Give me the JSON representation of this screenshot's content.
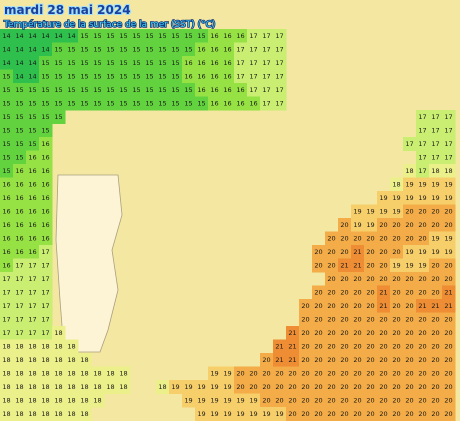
{
  "header": {
    "title": "mardi 28 mai 2024",
    "subtitle": "Température de la surface de la mer (SST) (°C)"
  },
  "value_colors": {
    "14": "#2fbf4d",
    "15": "#62d23f",
    "16": "#96e244",
    "17": "#c9ee72",
    "18": "#ecf08a",
    "19": "#f7cf6a",
    "20": "#f3ac47",
    "21": "#ee8d33"
  },
  "grid": [
    [
      14,
      14,
      14,
      14,
      14,
      14,
      15,
      15,
      15,
      15,
      15,
      15,
      15,
      15,
      15,
      15,
      16,
      16,
      16,
      17,
      17,
      17,
      null,
      null,
      null,
      null,
      null,
      null,
      null,
      null,
      null,
      null,
      null,
      null,
      null
    ],
    [
      14,
      14,
      14,
      14,
      15,
      15,
      15,
      15,
      15,
      15,
      15,
      15,
      15,
      15,
      15,
      16,
      16,
      16,
      17,
      17,
      17,
      17,
      null,
      null,
      null,
      null,
      null,
      null,
      null,
      null,
      null,
      null,
      null,
      null,
      null
    ],
    [
      14,
      14,
      14,
      15,
      15,
      15,
      15,
      15,
      15,
      15,
      15,
      15,
      15,
      15,
      16,
      16,
      16,
      16,
      17,
      17,
      17,
      17,
      null,
      null,
      null,
      null,
      null,
      null,
      null,
      null,
      null,
      null,
      null,
      null,
      null
    ],
    [
      15,
      14,
      14,
      15,
      15,
      15,
      15,
      15,
      15,
      15,
      15,
      15,
      15,
      15,
      16,
      16,
      16,
      16,
      17,
      17,
      17,
      17,
      null,
      null,
      null,
      null,
      null,
      null,
      null,
      null,
      null,
      null,
      null,
      null,
      null
    ],
    [
      15,
      15,
      15,
      15,
      15,
      15,
      15,
      15,
      15,
      15,
      15,
      15,
      15,
      15,
      15,
      16,
      16,
      16,
      16,
      17,
      17,
      17,
      null,
      null,
      null,
      null,
      null,
      null,
      null,
      null,
      null,
      null,
      null,
      null,
      null
    ],
    [
      15,
      15,
      15,
      15,
      15,
      15,
      15,
      15,
      15,
      15,
      15,
      15,
      15,
      15,
      15,
      15,
      16,
      16,
      16,
      16,
      17,
      17,
      null,
      null,
      null,
      null,
      null,
      null,
      null,
      null,
      null,
      null,
      null,
      null,
      null
    ],
    [
      15,
      15,
      15,
      15,
      15,
      null,
      null,
      null,
      null,
      null,
      null,
      null,
      null,
      null,
      null,
      null,
      null,
      null,
      null,
      null,
      null,
      null,
      null,
      null,
      null,
      null,
      null,
      null,
      null,
      null,
      null,
      null,
      17,
      17,
      17
    ],
    [
      15,
      15,
      15,
      15,
      null,
      null,
      null,
      null,
      null,
      null,
      null,
      null,
      null,
      null,
      null,
      null,
      null,
      null,
      null,
      null,
      null,
      null,
      null,
      null,
      null,
      null,
      null,
      null,
      null,
      null,
      null,
      null,
      17,
      17,
      17
    ],
    [
      15,
      15,
      15,
      16,
      null,
      null,
      null,
      null,
      null,
      null,
      null,
      null,
      null,
      null,
      null,
      null,
      null,
      null,
      null,
      null,
      null,
      null,
      null,
      null,
      null,
      null,
      null,
      null,
      null,
      null,
      null,
      17,
      17,
      17,
      17
    ],
    [
      15,
      15,
      16,
      16,
      null,
      null,
      null,
      null,
      null,
      null,
      null,
      null,
      null,
      null,
      null,
      null,
      null,
      null,
      null,
      null,
      null,
      null,
      null,
      null,
      null,
      null,
      null,
      null,
      null,
      null,
      null,
      null,
      17,
      17,
      17
    ],
    [
      15,
      16,
      16,
      16,
      null,
      null,
      null,
      null,
      null,
      null,
      null,
      null,
      null,
      null,
      null,
      null,
      null,
      null,
      null,
      null,
      null,
      null,
      null,
      null,
      null,
      null,
      null,
      null,
      null,
      null,
      null,
      18,
      17,
      18,
      18
    ],
    [
      16,
      16,
      16,
      16,
      null,
      null,
      null,
      null,
      null,
      null,
      null,
      null,
      null,
      null,
      null,
      null,
      null,
      null,
      null,
      null,
      null,
      null,
      null,
      null,
      null,
      null,
      null,
      null,
      null,
      null,
      18,
      19,
      19,
      19,
      19
    ],
    [
      16,
      16,
      16,
      16,
      null,
      null,
      null,
      null,
      null,
      null,
      null,
      null,
      null,
      null,
      null,
      null,
      null,
      null,
      null,
      null,
      null,
      null,
      null,
      null,
      null,
      null,
      null,
      null,
      null,
      19,
      19,
      19,
      19,
      19,
      19
    ],
    [
      16,
      16,
      16,
      16,
      null,
      null,
      null,
      null,
      null,
      null,
      null,
      null,
      null,
      null,
      null,
      null,
      null,
      null,
      null,
      null,
      null,
      null,
      null,
      null,
      null,
      null,
      null,
      19,
      19,
      19,
      19,
      20,
      20,
      20,
      20
    ],
    [
      16,
      16,
      16,
      16,
      null,
      null,
      null,
      null,
      null,
      null,
      null,
      null,
      null,
      null,
      null,
      null,
      null,
      null,
      null,
      null,
      null,
      null,
      null,
      null,
      null,
      null,
      20,
      19,
      19,
      20,
      20,
      20,
      20,
      20,
      20
    ],
    [
      16,
      16,
      16,
      16,
      null,
      null,
      null,
      null,
      null,
      null,
      null,
      null,
      null,
      null,
      null,
      null,
      null,
      null,
      null,
      null,
      null,
      null,
      null,
      null,
      null,
      20,
      20,
      20,
      20,
      20,
      20,
      20,
      20,
      19,
      19
    ],
    [
      16,
      16,
      16,
      17,
      null,
      null,
      null,
      null,
      null,
      null,
      null,
      null,
      null,
      null,
      null,
      null,
      null,
      null,
      null,
      null,
      null,
      null,
      null,
      null,
      20,
      20,
      20,
      21,
      20,
      20,
      20,
      19,
      19,
      19,
      19
    ],
    [
      16,
      17,
      17,
      17,
      null,
      null,
      null,
      null,
      null,
      null,
      null,
      null,
      null,
      null,
      null,
      null,
      null,
      null,
      null,
      null,
      null,
      null,
      null,
      null,
      20,
      20,
      21,
      21,
      20,
      20,
      19,
      19,
      19,
      20,
      20
    ],
    [
      17,
      17,
      17,
      17,
      null,
      null,
      null,
      null,
      null,
      null,
      null,
      null,
      null,
      null,
      null,
      null,
      null,
      null,
      null,
      null,
      null,
      null,
      null,
      null,
      null,
      20,
      20,
      20,
      20,
      20,
      20,
      20,
      20,
      20,
      20
    ],
    [
      17,
      17,
      17,
      17,
      null,
      null,
      null,
      null,
      null,
      null,
      null,
      null,
      null,
      null,
      null,
      null,
      null,
      null,
      null,
      null,
      null,
      null,
      null,
      null,
      20,
      20,
      20,
      20,
      20,
      21,
      20,
      20,
      20,
      20,
      21
    ],
    [
      17,
      17,
      17,
      17,
      null,
      null,
      null,
      null,
      null,
      null,
      null,
      null,
      null,
      null,
      null,
      null,
      null,
      null,
      null,
      null,
      null,
      null,
      null,
      20,
      20,
      20,
      20,
      20,
      20,
      21,
      20,
      20,
      21,
      21,
      21
    ],
    [
      17,
      17,
      17,
      17,
      null,
      null,
      null,
      null,
      null,
      null,
      null,
      null,
      null,
      null,
      null,
      null,
      null,
      null,
      null,
      null,
      null,
      null,
      null,
      20,
      20,
      20,
      20,
      20,
      20,
      20,
      20,
      20,
      20,
      20,
      20
    ],
    [
      17,
      17,
      17,
      17,
      18,
      null,
      null,
      null,
      null,
      null,
      null,
      null,
      null,
      null,
      null,
      null,
      null,
      null,
      null,
      null,
      null,
      null,
      21,
      20,
      20,
      20,
      20,
      20,
      20,
      20,
      20,
      20,
      20,
      20,
      20
    ],
    [
      18,
      18,
      18,
      18,
      18,
      18,
      null,
      null,
      null,
      null,
      null,
      null,
      null,
      null,
      null,
      null,
      null,
      null,
      null,
      null,
      null,
      21,
      21,
      20,
      20,
      20,
      20,
      20,
      20,
      20,
      20,
      20,
      20,
      20,
      20
    ],
    [
      18,
      18,
      18,
      18,
      18,
      18,
      18,
      null,
      null,
      null,
      null,
      null,
      null,
      null,
      null,
      null,
      null,
      null,
      null,
      null,
      20,
      21,
      21,
      20,
      20,
      20,
      20,
      20,
      20,
      20,
      20,
      20,
      20,
      20,
      20
    ],
    [
      18,
      18,
      18,
      18,
      18,
      18,
      18,
      18,
      18,
      18,
      null,
      null,
      null,
      null,
      null,
      null,
      19,
      19,
      20,
      20,
      20,
      20,
      20,
      20,
      20,
      20,
      20,
      20,
      20,
      20,
      20,
      20,
      20,
      20,
      20
    ],
    [
      18,
      18,
      18,
      18,
      18,
      18,
      18,
      18,
      18,
      18,
      null,
      null,
      18,
      19,
      19,
      19,
      19,
      19,
      20,
      20,
      20,
      20,
      20,
      20,
      20,
      20,
      20,
      20,
      20,
      20,
      20,
      20,
      20,
      20,
      20
    ],
    [
      18,
      18,
      18,
      18,
      18,
      18,
      18,
      18,
      null,
      null,
      null,
      null,
      null,
      null,
      19,
      19,
      19,
      19,
      19,
      19,
      20,
      20,
      20,
      20,
      20,
      20,
      20,
      20,
      20,
      20,
      20,
      20,
      20,
      20,
      20
    ],
    [
      18,
      18,
      18,
      18,
      18,
      18,
      18,
      null,
      null,
      null,
      null,
      null,
      null,
      null,
      null,
      19,
      19,
      19,
      19,
      19,
      19,
      19,
      20,
      20,
      20,
      20,
      20,
      20,
      20,
      20,
      20,
      20,
      20,
      20,
      20
    ]
  ]
}
